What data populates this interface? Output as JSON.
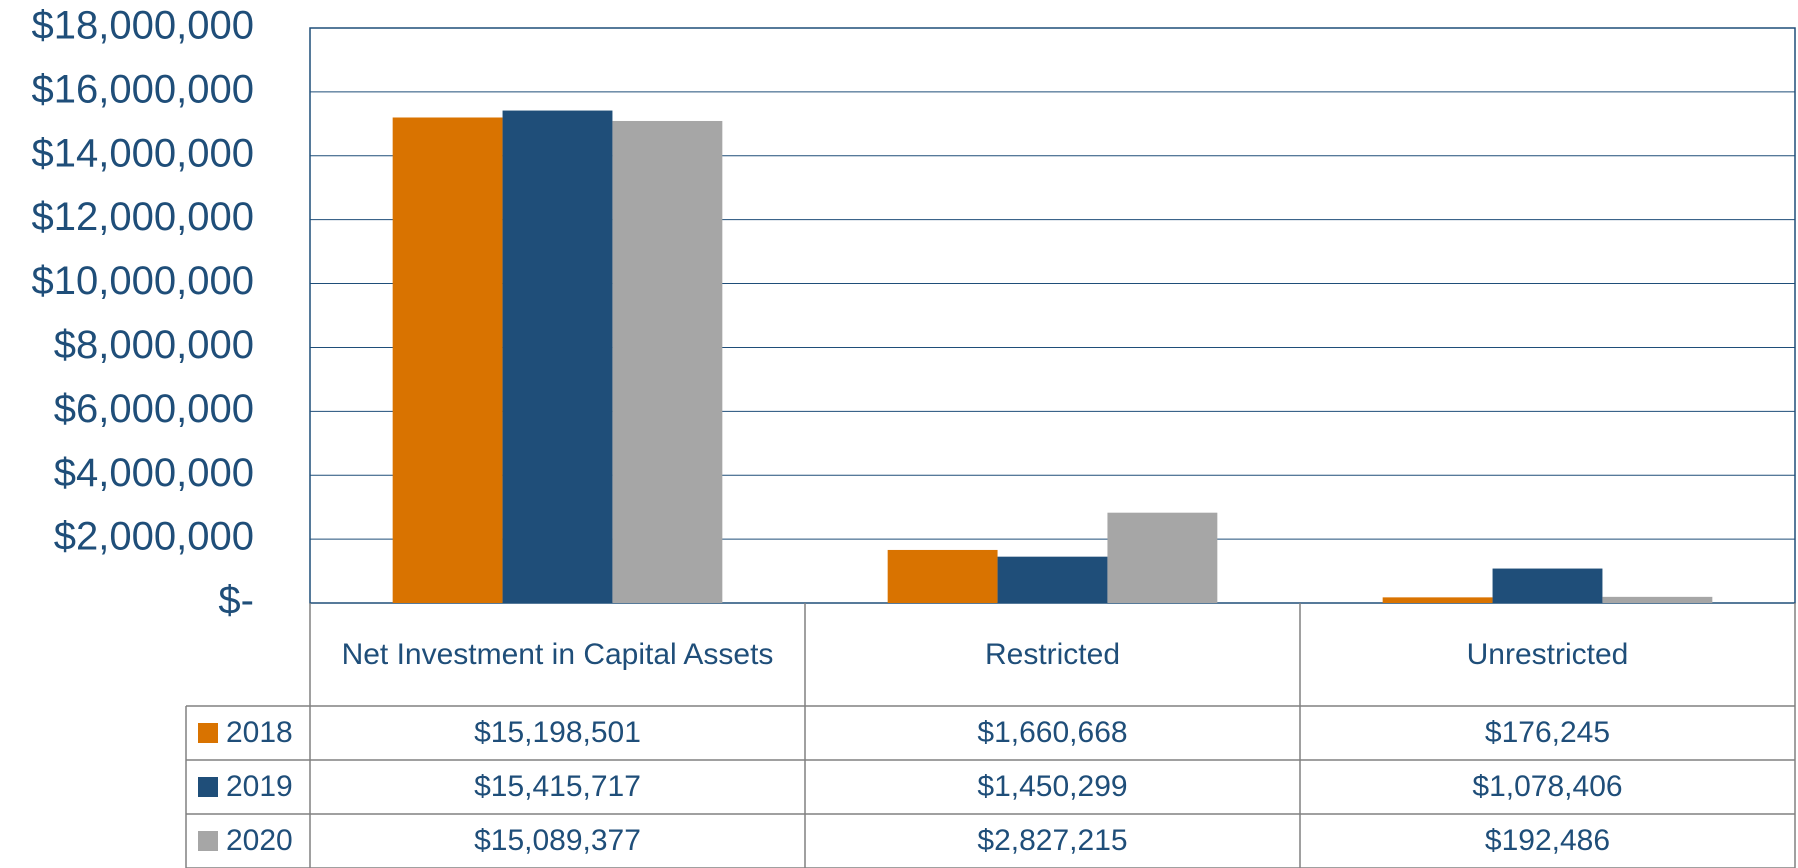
{
  "chart_data": {
    "type": "bar",
    "categories": [
      "Net Investment in Capital Assets",
      "Restricted",
      "Unrestricted"
    ],
    "series": [
      {
        "name": "2018",
        "color": "#d97300",
        "values": [
          15198501,
          1660668,
          176245
        ],
        "value_labels": [
          "$15,198,501",
          "$1,660,668",
          "$176,245"
        ]
      },
      {
        "name": "2019",
        "color": "#1f4e79",
        "values": [
          15415717,
          1450299,
          1078406
        ],
        "value_labels": [
          "$15,415,717",
          "$1,450,299",
          "$1,078,406"
        ]
      },
      {
        "name": "2020",
        "color": "#a6a6a6",
        "values": [
          15089377,
          2827215,
          192486
        ],
        "value_labels": [
          "$15,089,377",
          "$2,827,215",
          "$192,486"
        ]
      }
    ],
    "ylim": [
      0,
      18000000
    ],
    "yticks": [
      {
        "value": 0,
        "label": "$-"
      },
      {
        "value": 2000000,
        "label": "$2,000,000"
      },
      {
        "value": 4000000,
        "label": "$4,000,000"
      },
      {
        "value": 6000000,
        "label": "$6,000,000"
      },
      {
        "value": 8000000,
        "label": "$8,000,000"
      },
      {
        "value": 10000000,
        "label": "$10,000,000"
      },
      {
        "value": 12000000,
        "label": "$12,000,000"
      },
      {
        "value": 14000000,
        "label": "$14,000,000"
      },
      {
        "value": 16000000,
        "label": "$16,000,000"
      },
      {
        "value": 18000000,
        "label": "$18,000,000"
      }
    ],
    "grid": true
  }
}
